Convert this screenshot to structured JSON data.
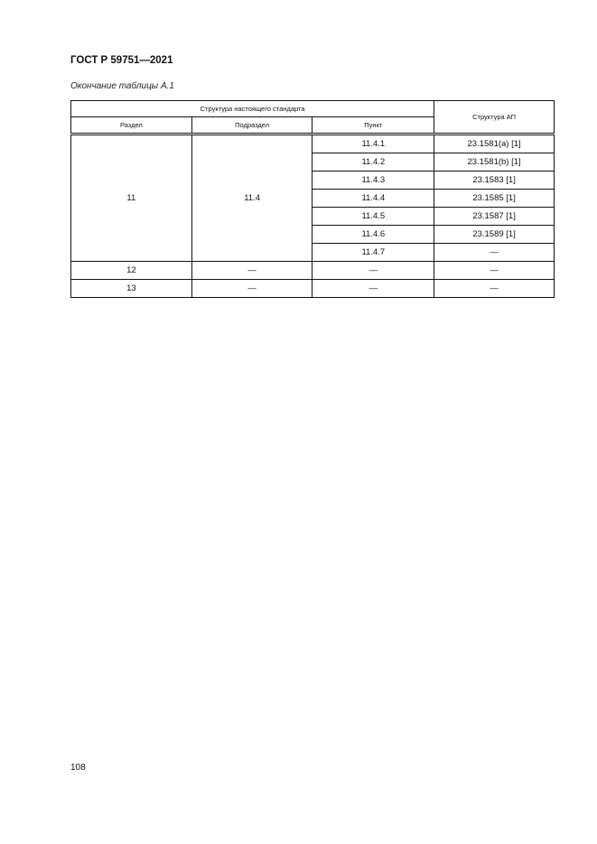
{
  "header": {
    "title": "ГОСТ Р 59751—2021"
  },
  "caption": "Окончание таблицы А.1",
  "table": {
    "group_header": "Структура настоящего стандарта",
    "ap_header": "Структура АП",
    "columns": [
      "Раздел",
      "Подраздел",
      "Пункт"
    ],
    "section": "11",
    "subsection": "11.4",
    "rows": [
      {
        "item": "11.4.1",
        "ap": "23.1581(a) [1]"
      },
      {
        "item": "11.4.2",
        "ap": "23.1581(b) [1]"
      },
      {
        "item": "11.4.3",
        "ap": "23.1583 [1]"
      },
      {
        "item": "11.4.4",
        "ap": "23.1585 [1]"
      },
      {
        "item": "11.4.5",
        "ap": "23.1587 [1]"
      },
      {
        "item": "11.4.6",
        "ap": "23.1589 [1]"
      },
      {
        "item": "11.4.7",
        "ap": "—"
      }
    ],
    "extra_rows": [
      {
        "section": "12",
        "subsection": "—",
        "item": "—",
        "ap": "—"
      },
      {
        "section": "13",
        "subsection": "—",
        "item": "—",
        "ap": "—"
      }
    ]
  },
  "page_number": "108"
}
